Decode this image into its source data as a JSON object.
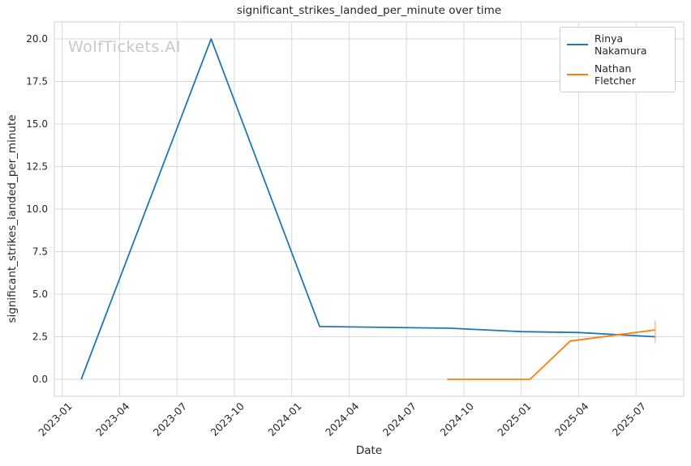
{
  "figure": {
    "watermark": "WolfTickets.AI"
  },
  "chart_data": {
    "type": "line",
    "title": "significant_strikes_landed_per_minute over time",
    "xlabel": "Date",
    "ylabel": "significant_strikes_landed_per_minute",
    "x_ticks": [
      "2023-01",
      "2023-04",
      "2023-07",
      "2023-10",
      "2024-01",
      "2024-04",
      "2024-07",
      "2024-10",
      "2025-01",
      "2025-04",
      "2025-07"
    ],
    "y_ticks": [
      "0.0",
      "2.5",
      "5.0",
      "7.5",
      "10.0",
      "12.5",
      "15.0",
      "17.5",
      "20.0"
    ],
    "ylim": [
      -1.0,
      21.0
    ],
    "xlim": [
      "2022-12-19",
      "2025-09-16"
    ],
    "grid": true,
    "legend_position": "upper right",
    "colors": {
      "grid": "#d9d9d9",
      "spine": "#cfcfcf",
      "text": "#262626",
      "watermark": "#c8c8c8",
      "background": "#ffffff"
    },
    "series": [
      {
        "name": "Rinya Nakamura",
        "color": "#1f77b4",
        "points": [
          {
            "date": "2023-02-01",
            "value": 0.0
          },
          {
            "date": "2023-08-25",
            "value": 20.0
          },
          {
            "date": "2024-02-15",
            "value": 3.1
          },
          {
            "date": "2024-09-10",
            "value": 3.0
          },
          {
            "date": "2025-01-01",
            "value": 2.8
          },
          {
            "date": "2025-04-01",
            "value": 2.75
          },
          {
            "date": "2025-08-01",
            "value": 2.5
          }
        ]
      },
      {
        "name": "Nathan Fletcher",
        "color": "#ff7f0e",
        "points": [
          {
            "date": "2024-09-05",
            "value": 0.0
          },
          {
            "date": "2025-01-15",
            "value": 0.0
          },
          {
            "date": "2025-03-18",
            "value": 2.25
          },
          {
            "date": "2025-08-01",
            "value": 2.9
          }
        ],
        "end_whisker": {
          "date": "2025-08-01",
          "from": 2.15,
          "to": 3.45,
          "color": "rgba(255,127,14,0.45)"
        }
      }
    ]
  }
}
